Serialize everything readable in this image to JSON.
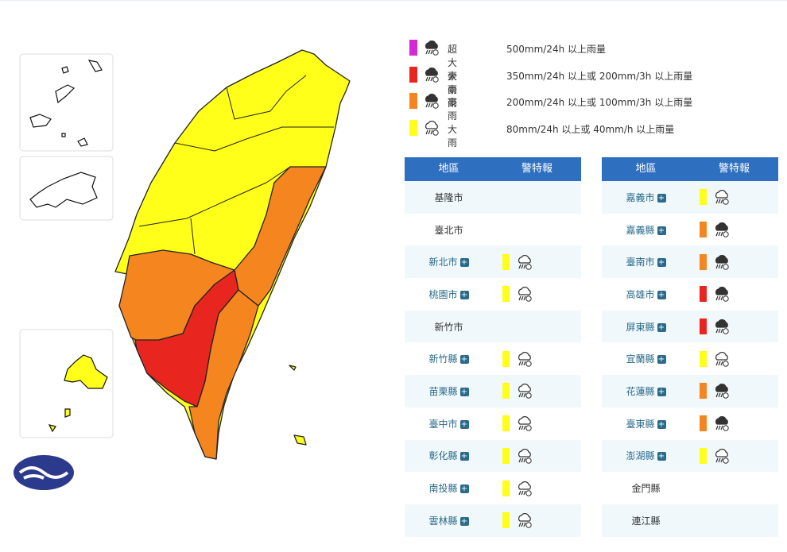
{
  "legend": [
    {
      "color": "#d42ad6",
      "icon_color": "#333",
      "name": "超大豪雨",
      "description": "500mm/24h 以上雨量"
    },
    {
      "color": "#e8251f",
      "icon_color": "#333",
      "name": "大豪雨",
      "description": "350mm/24h 以上或 200mm/3h 以上雨量"
    },
    {
      "color": "#f5861f",
      "icon_color": "#333",
      "name": "豪雨",
      "description": "200mm/24h 以上或 100mm/3h 以上雨量"
    },
    {
      "color": "#ffff1a",
      "icon_color": "#fff",
      "name": "大雨",
      "description": "80mm/24h 以上或 40mm/h 以上雨量"
    }
  ],
  "tables": [
    {
      "headers": [
        "地區",
        "警特報"
      ],
      "rows": [
        {
          "name": "基隆市"
        },
        {
          "name": "臺北市"
        },
        {
          "name": "新北市",
          "color": "#ffff1a"
        },
        {
          "name": "桃園市",
          "color": "#ffff1a"
        },
        {
          "name": "新竹市"
        },
        {
          "name": "新竹縣",
          "color": "#ffff1a"
        },
        {
          "name": "苗栗縣",
          "color": "#ffff1a"
        },
        {
          "name": "臺中市",
          "color": "#ffff1a"
        },
        {
          "name": "彰化縣",
          "color": "#ffff1a"
        },
        {
          "name": "南投縣",
          "color": "#ffff1a"
        },
        {
          "name": "雲林縣",
          "color": "#ffff1a"
        }
      ]
    },
    {
      "headers": [
        "地區",
        "警特報"
      ],
      "rows": [
        {
          "name": "嘉義市",
          "color": "#ffff1a"
        },
        {
          "name": "嘉義縣",
          "color": "#f5861f"
        },
        {
          "name": "臺南市",
          "color": "#f5861f"
        },
        {
          "name": "高雄市",
          "color": "#e8251f"
        },
        {
          "name": "屏東縣",
          "color": "#e8251f"
        },
        {
          "name": "宜蘭縣",
          "color": "#ffff1a"
        },
        {
          "name": "花蓮縣",
          "color": "#f5861f"
        },
        {
          "name": "臺東縣",
          "color": "#f5861f"
        },
        {
          "name": "澎湖縣",
          "color": "#ffff1a"
        },
        {
          "name": "金門縣"
        },
        {
          "name": "連江縣"
        }
      ]
    }
  ]
}
